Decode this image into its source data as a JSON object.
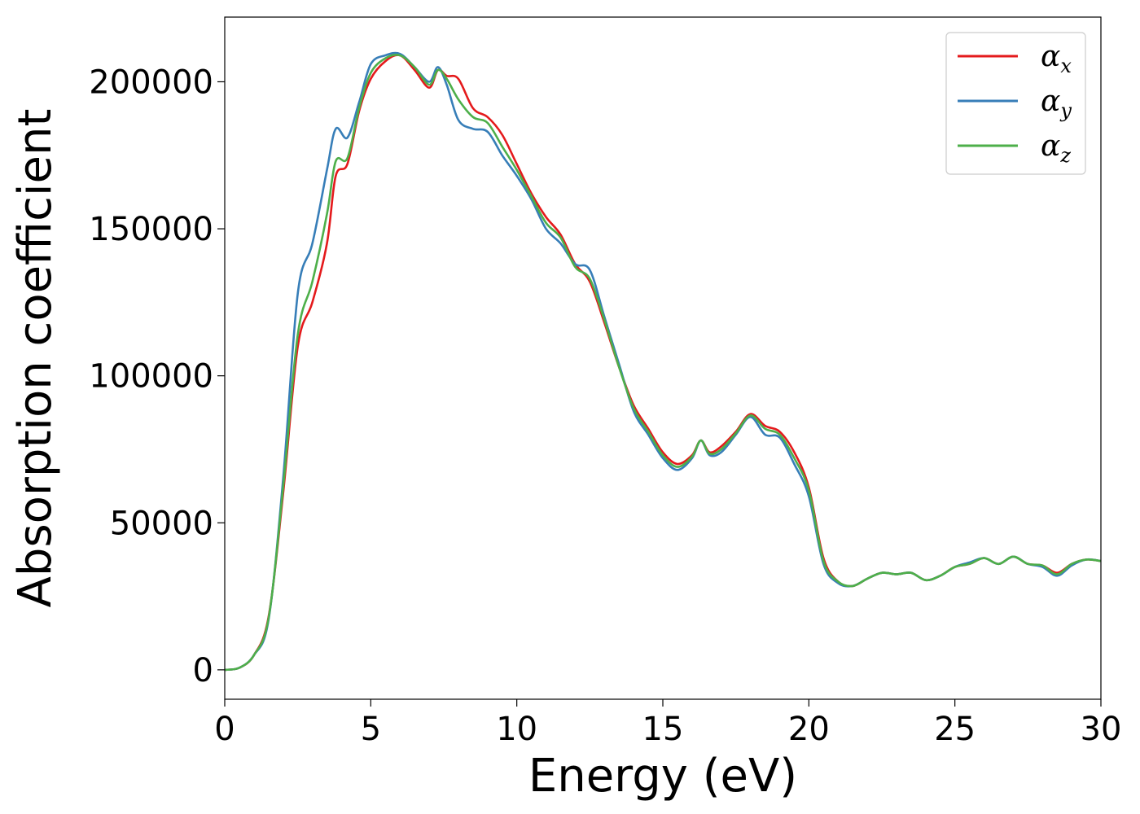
{
  "chart_data": {
    "type": "line",
    "xlabel": "Energy (eV)",
    "ylabel": "Absorption coefficient",
    "xlim": [
      0,
      30
    ],
    "ylim": [
      -10000,
      222000
    ],
    "xticks": [
      0,
      5,
      10,
      15,
      20,
      25,
      30
    ],
    "yticks": [
      0,
      50000,
      100000,
      150000,
      200000
    ],
    "grid": false,
    "legend_position": "top-right",
    "series": [
      {
        "name": "α_x",
        "legend_base": "α",
        "legend_sub": "x",
        "color": "#e41a1c",
        "points": [
          [
            0,
            0
          ],
          [
            0.5,
            700
          ],
          [
            1,
            5000
          ],
          [
            1.5,
            18000
          ],
          [
            2,
            60000
          ],
          [
            2.5,
            110000
          ],
          [
            3,
            125000
          ],
          [
            3.5,
            145000
          ],
          [
            3.8,
            168000
          ],
          [
            4.2,
            172000
          ],
          [
            4.6,
            190000
          ],
          [
            5,
            201000
          ],
          [
            5.5,
            207000
          ],
          [
            6,
            209000
          ],
          [
            6.5,
            204000
          ],
          [
            7,
            198000
          ],
          [
            7.3,
            204000
          ],
          [
            7.6,
            202000
          ],
          [
            8,
            201000
          ],
          [
            8.5,
            191000
          ],
          [
            9,
            188000
          ],
          [
            9.5,
            182000
          ],
          [
            10,
            172000
          ],
          [
            10.5,
            162000
          ],
          [
            11,
            154000
          ],
          [
            11.5,
            148000
          ],
          [
            12,
            138000
          ],
          [
            12.5,
            132000
          ],
          [
            13,
            118000
          ],
          [
            13.5,
            103000
          ],
          [
            14,
            90000
          ],
          [
            14.5,
            82000
          ],
          [
            15,
            74000
          ],
          [
            15.5,
            70000
          ],
          [
            16,
            73000
          ],
          [
            16.3,
            78000
          ],
          [
            16.6,
            74000
          ],
          [
            17,
            76000
          ],
          [
            17.5,
            81000
          ],
          [
            18,
            87000
          ],
          [
            18.5,
            83000
          ],
          [
            19,
            81000
          ],
          [
            19.5,
            74000
          ],
          [
            20,
            62000
          ],
          [
            20.5,
            38000
          ],
          [
            21,
            30000
          ],
          [
            21.5,
            28500
          ],
          [
            22,
            31000
          ],
          [
            22.5,
            33000
          ],
          [
            23,
            32500
          ],
          [
            23.5,
            33000
          ],
          [
            24,
            30500
          ],
          [
            24.5,
            32000
          ],
          [
            25,
            35000
          ],
          [
            25.5,
            36000
          ],
          [
            26,
            38000
          ],
          [
            26.5,
            36000
          ],
          [
            27,
            38500
          ],
          [
            27.5,
            36000
          ],
          [
            28,
            35500
          ],
          [
            28.5,
            33000
          ],
          [
            29,
            36000
          ],
          [
            29.5,
            37500
          ],
          [
            30,
            37000
          ]
        ]
      },
      {
        "name": "α_y",
        "legend_base": "α",
        "legend_sub": "y",
        "color": "#377eb8",
        "points": [
          [
            0,
            0
          ],
          [
            0.5,
            700
          ],
          [
            1,
            5000
          ],
          [
            1.5,
            17000
          ],
          [
            2,
            65000
          ],
          [
            2.5,
            128000
          ],
          [
            3,
            145000
          ],
          [
            3.5,
            170000
          ],
          [
            3.8,
            184000
          ],
          [
            4.2,
            181000
          ],
          [
            4.6,
            193000
          ],
          [
            5,
            206000
          ],
          [
            5.5,
            209000
          ],
          [
            6,
            209500
          ],
          [
            6.5,
            205000
          ],
          [
            7,
            200000
          ],
          [
            7.3,
            205000
          ],
          [
            7.6,
            199000
          ],
          [
            8,
            187000
          ],
          [
            8.5,
            184000
          ],
          [
            9,
            183000
          ],
          [
            9.5,
            175000
          ],
          [
            10,
            168000
          ],
          [
            10.5,
            160000
          ],
          [
            11,
            150000
          ],
          [
            11.5,
            145000
          ],
          [
            12,
            138000
          ],
          [
            12.5,
            136000
          ],
          [
            13,
            120000
          ],
          [
            13.5,
            104000
          ],
          [
            14,
            88000
          ],
          [
            14.5,
            80000
          ],
          [
            15,
            72000
          ],
          [
            15.5,
            68000
          ],
          [
            16,
            72000
          ],
          [
            16.3,
            78000
          ],
          [
            16.6,
            73000
          ],
          [
            17,
            74000
          ],
          [
            17.5,
            80000
          ],
          [
            18,
            86000
          ],
          [
            18.5,
            80000
          ],
          [
            19,
            79000
          ],
          [
            19.5,
            70000
          ],
          [
            20,
            59000
          ],
          [
            20.5,
            36000
          ],
          [
            21,
            29500
          ],
          [
            21.5,
            28500
          ],
          [
            22,
            31000
          ],
          [
            22.5,
            33000
          ],
          [
            23,
            32500
          ],
          [
            23.5,
            33000
          ],
          [
            24,
            30500
          ],
          [
            24.5,
            32000
          ],
          [
            25,
            35000
          ],
          [
            25.5,
            36500
          ],
          [
            26,
            38000
          ],
          [
            26.5,
            36000
          ],
          [
            27,
            38500
          ],
          [
            27.5,
            36000
          ],
          [
            28,
            35000
          ],
          [
            28.5,
            32000
          ],
          [
            29,
            35500
          ],
          [
            29.5,
            37500
          ],
          [
            30,
            37000
          ]
        ]
      },
      {
        "name": "α_z",
        "legend_base": "α",
        "legend_sub": "z",
        "color": "#4daf4a",
        "points": [
          [
            0,
            0
          ],
          [
            0.5,
            700
          ],
          [
            1,
            5000
          ],
          [
            1.5,
            17500
          ],
          [
            2,
            62000
          ],
          [
            2.5,
            114000
          ],
          [
            3,
            132000
          ],
          [
            3.5,
            155000
          ],
          [
            3.8,
            173000
          ],
          [
            4.2,
            174000
          ],
          [
            4.6,
            191000
          ],
          [
            5,
            203000
          ],
          [
            5.5,
            208000
          ],
          [
            6,
            209000
          ],
          [
            6.5,
            205000
          ],
          [
            7,
            199000
          ],
          [
            7.3,
            204000
          ],
          [
            7.6,
            201000
          ],
          [
            8,
            194000
          ],
          [
            8.5,
            188000
          ],
          [
            9,
            186000
          ],
          [
            9.5,
            178000
          ],
          [
            10,
            170000
          ],
          [
            10.5,
            161000
          ],
          [
            11,
            152000
          ],
          [
            11.5,
            147000
          ],
          [
            12,
            137000
          ],
          [
            12.5,
            133000
          ],
          [
            13,
            119000
          ],
          [
            13.5,
            103000
          ],
          [
            14,
            89000
          ],
          [
            14.5,
            81000
          ],
          [
            15,
            73000
          ],
          [
            15.5,
            69000
          ],
          [
            16,
            72500
          ],
          [
            16.3,
            78000
          ],
          [
            16.6,
            73500
          ],
          [
            17,
            75000
          ],
          [
            17.5,
            80500
          ],
          [
            18,
            86500
          ],
          [
            18.5,
            82000
          ],
          [
            19,
            80000
          ],
          [
            19.5,
            72000
          ],
          [
            20,
            61000
          ],
          [
            20.5,
            37000
          ],
          [
            21,
            30000
          ],
          [
            21.5,
            28500
          ],
          [
            22,
            31000
          ],
          [
            22.5,
            33000
          ],
          [
            23,
            32500
          ],
          [
            23.5,
            33000
          ],
          [
            24,
            30500
          ],
          [
            24.5,
            32000
          ],
          [
            25,
            35000
          ],
          [
            25.5,
            36000
          ],
          [
            26,
            38000
          ],
          [
            26.5,
            36000
          ],
          [
            27,
            38500
          ],
          [
            27.5,
            36000
          ],
          [
            28,
            35500
          ],
          [
            28.5,
            32500
          ],
          [
            29,
            36000
          ],
          [
            29.5,
            37500
          ],
          [
            30,
            37000
          ]
        ]
      }
    ]
  }
}
